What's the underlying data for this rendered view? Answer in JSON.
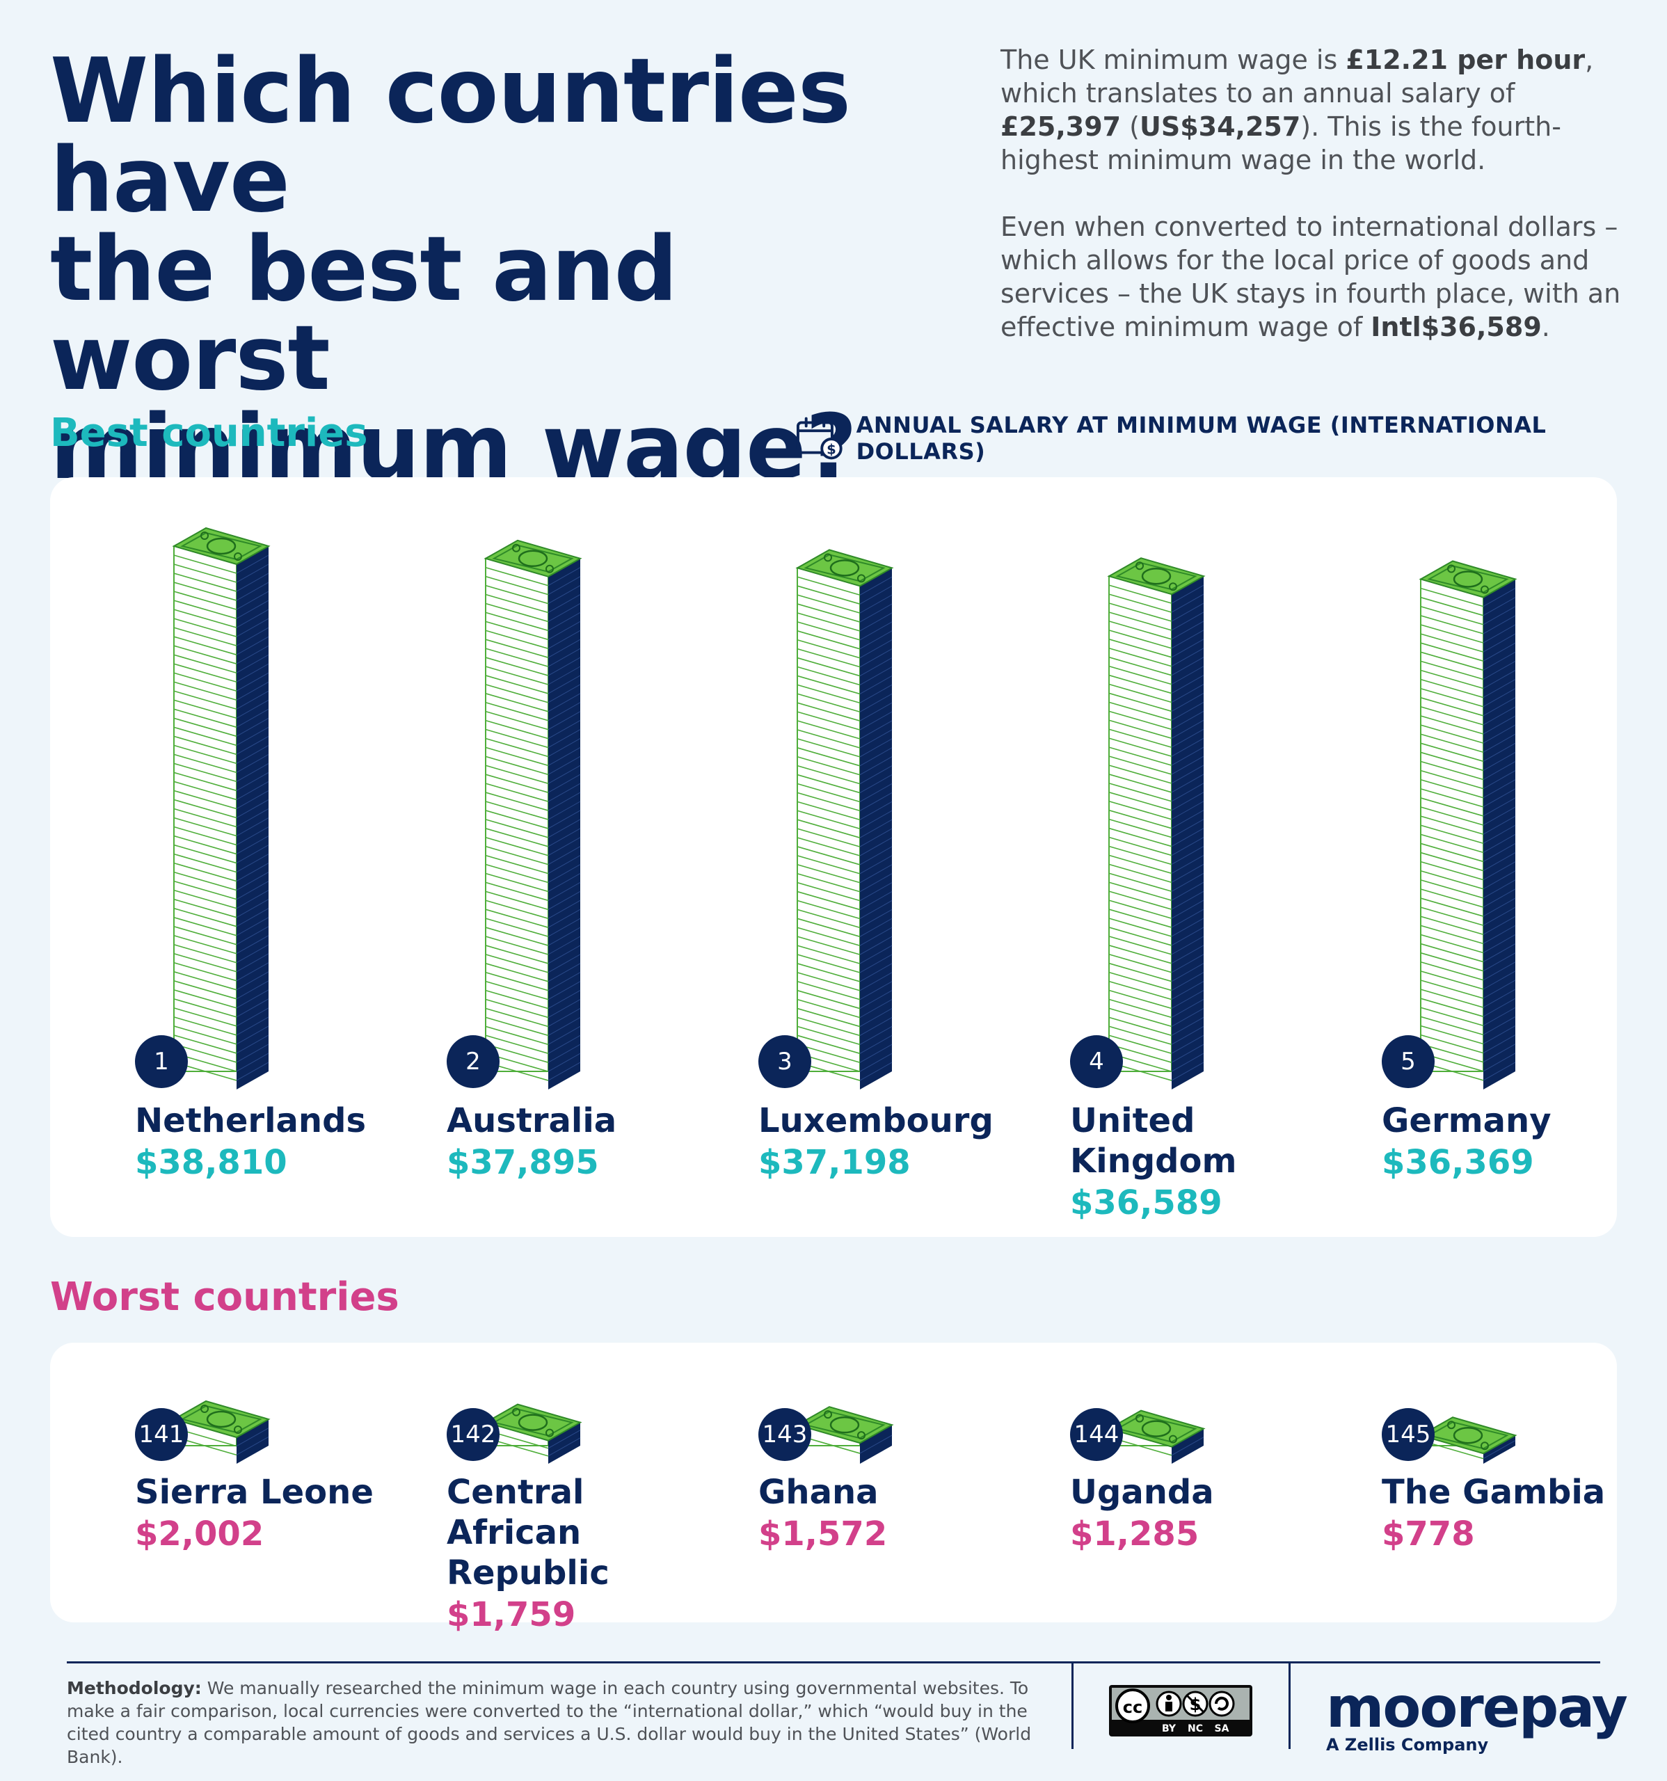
{
  "title": [
    "Which countries have",
    "the best and worst",
    "minimum wage?"
  ],
  "intro": {
    "p1_before": "The UK minimum wage is ",
    "p1_bold1": "£12.21 per hour",
    "p1_mid": ", which translates to an annual salary of ",
    "p1_bold2": "£25,397",
    "p1_paren_open": " (",
    "p1_bold3": "US$34,257",
    "p1_after": "). This is the fourth-highest minimum wage in the world.",
    "p2_before": "Even when converted to international dollars – which allows for the local price of goods and services – the UK stays in fourth place, with an effective minimum wage of ",
    "p2_bold": "Intl$36,589",
    "p2_after": "."
  },
  "best_heading": "Best countries",
  "worst_heading": "Worst countries",
  "legend": {
    "label": "ANNUAL SALARY AT MINIMUM WAGE (INTERNATIONAL DOLLARS)",
    "icon": "calendar-dollar-icon"
  },
  "colors": {
    "navy": "#0b2559",
    "teal": "#1db9bd",
    "pink": "#d2408a",
    "bill_green": "#6cc644",
    "bill_line": "#4fae3a"
  },
  "chart_data": [
    {
      "type": "bar",
      "title": "Best countries",
      "ylabel": "Annual salary at minimum wage (international dollars)",
      "categories": [
        "Netherlands",
        "Australia",
        "Luxembourg",
        "United Kingdom",
        "Germany"
      ],
      "ranks": [
        "1",
        "2",
        "3",
        "4",
        "5"
      ],
      "values": [
        38810,
        37895,
        37198,
        36589,
        36369
      ],
      "value_labels": [
        "$38,810",
        "$37,895",
        "$37,198",
        "$36,589",
        "$36,369"
      ]
    },
    {
      "type": "bar",
      "title": "Worst countries",
      "ylabel": "Annual salary at minimum wage (international dollars)",
      "categories": [
        "Sierra Leone",
        "Central African Republic",
        "Ghana",
        "Uganda",
        "The Gambia"
      ],
      "ranks": [
        "141",
        "142",
        "143",
        "144",
        "145"
      ],
      "values": [
        2002,
        1759,
        1572,
        1285,
        778
      ],
      "value_labels": [
        "$2,002",
        "$1,759",
        "$1,572",
        "$1,285",
        "$778"
      ]
    }
  ],
  "footer": {
    "method_label": "Methodology:",
    "method_text": " We manually researched the minimum wage in each country using governmental websites. To make a fair comparison, local currencies were converted to the “international dollar,” which “would buy in the cited country a comparable amount of goods and services a U.S. dollar would buy in the United States” (World Bank).",
    "license_labels": [
      "BY",
      "NC",
      "SA"
    ],
    "license_icon": "creative-commons-icon",
    "brand": "moorepay",
    "tagline": "A Zellis Company"
  }
}
